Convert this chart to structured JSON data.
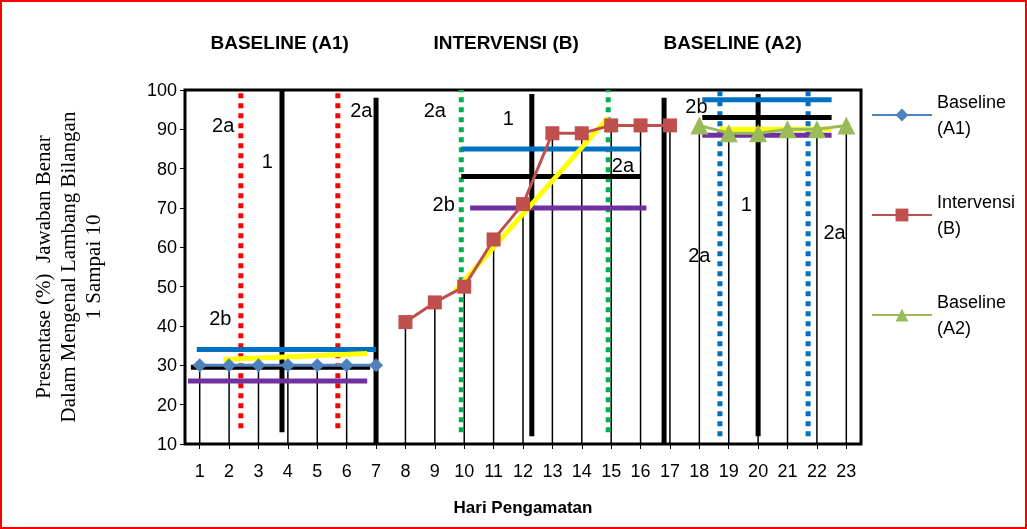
{
  "chart_data": {
    "type": "line",
    "ylabel": "Presentase (%)  Jawaban Benar\nDalam Mengenal Lambang Bilangan\n1 Sampai 10",
    "xlabel": "Hari Pengamatan",
    "xlim": [
      0.5,
      23.5
    ],
    "xticks": [
      1,
      2,
      3,
      4,
      5,
      6,
      7,
      8,
      9,
      10,
      11,
      12,
      13,
      14,
      15,
      16,
      17,
      18,
      19,
      20,
      21,
      22,
      23
    ],
    "ylim": [
      10,
      100
    ],
    "yticks": [
      10,
      20,
      30,
      40,
      50,
      60,
      70,
      80,
      90,
      100
    ],
    "grid": false,
    "legend": "right",
    "series": [
      {
        "name": "Baseline\n(A1)",
        "color": "#4f81bd",
        "marker": "diamond",
        "x": [
          1,
          2,
          3,
          4,
          5,
          6,
          7
        ],
        "values": [
          30,
          30,
          30,
          30,
          30,
          30,
          30
        ],
        "errors": [
          [
            10,
            30
          ],
          [
            10,
            30
          ],
          [
            10,
            30
          ],
          [
            10,
            30
          ],
          [
            10,
            30
          ],
          [
            10,
            30
          ],
          [
            10,
            30
          ]
        ]
      },
      {
        "name": "Intervensi\n(B)",
        "color": "#c0504d",
        "marker": "square",
        "x": [
          8,
          9,
          10,
          11,
          12,
          13,
          14,
          15,
          16,
          17
        ],
        "values": [
          41,
          46,
          50,
          62,
          71,
          89,
          89,
          91,
          91,
          91
        ],
        "errors": [
          [
            10,
            41
          ],
          [
            10,
            46
          ],
          [
            10,
            50
          ],
          [
            10,
            62
          ],
          [
            10,
            71
          ],
          [
            10,
            89
          ],
          [
            10,
            89
          ],
          [
            10,
            91
          ],
          [
            10,
            91
          ],
          [
            10,
            91
          ]
        ]
      },
      {
        "name": "Baseline\n(A2)",
        "color": "#9bbb59",
        "marker": "triangle",
        "x": [
          18,
          19,
          20,
          21,
          22,
          23
        ],
        "values": [
          91,
          89,
          89,
          90,
          90,
          91
        ],
        "errors": [
          [
            10,
            91
          ],
          [
            10,
            89
          ],
          [
            10,
            89
          ],
          [
            10,
            90
          ],
          [
            10,
            90
          ],
          [
            10,
            91
          ]
        ]
      },
      {
        "color": "#ff0000",
        "line_style": "dotted",
        "x": [
          2.4,
          2.4
        ],
        "values": [
          14,
          100
        ]
      },
      {
        "color": "#ff0000",
        "line_style": "dotted",
        "x": [
          5.7,
          5.7
        ],
        "values": [
          14,
          100
        ]
      },
      {
        "color": "#000000",
        "line_style": "solid",
        "x": [
          3.8,
          3.8
        ],
        "values": [
          13,
          100
        ]
      },
      {
        "color": "#000000",
        "line_style": "solid",
        "x": [
          7,
          7
        ],
        "values": [
          10,
          98
        ]
      },
      {
        "color": "#0070c0",
        "line_style": "solid",
        "x": [
          0.9,
          7
        ],
        "values": [
          34,
          34
        ]
      },
      {
        "color": "#ffff00",
        "line_style": "solid",
        "x": [
          1.8,
          6.7
        ],
        "values": [
          31.5,
          33
        ]
      },
      {
        "color": "#000000",
        "line_style": "solid",
        "x": [
          0.7,
          6.8
        ],
        "values": [
          29.5,
          29.5
        ]
      },
      {
        "color": "#7030a0",
        "line_style": "solid",
        "x": [
          0.6,
          6.7
        ],
        "values": [
          26,
          26
        ]
      },
      {
        "color": "#00b050",
        "line_style": "dotted",
        "x": [
          9.9,
          9.9
        ],
        "values": [
          13,
          100
        ]
      },
      {
        "color": "#00b050",
        "line_style": "dotted",
        "x": [
          14.9,
          14.9
        ],
        "values": [
          13,
          100
        ]
      },
      {
        "color": "#000000",
        "line_style": "solid",
        "x": [
          12.3,
          12.3
        ],
        "values": [
          12,
          99
        ]
      },
      {
        "color": "#000000",
        "line_style": "solid",
        "x": [
          16.8,
          16.8
        ],
        "values": [
          10,
          98
        ]
      },
      {
        "color": "#0070c0",
        "line_style": "solid",
        "x": [
          9.9,
          16
        ],
        "values": [
          85,
          85
        ]
      },
      {
        "color": "#000000",
        "line_style": "solid",
        "x": [
          9.9,
          16
        ],
        "values": [
          78,
          78
        ]
      },
      {
        "color": "#7030a0",
        "line_style": "solid",
        "x": [
          10.2,
          16.2
        ],
        "values": [
          70,
          70
        ]
      },
      {
        "color": "#ffff00",
        "line_style": "solid",
        "x": [
          9.7,
          14.9
        ],
        "values": [
          49,
          93
        ]
      },
      {
        "color": "#0070c0",
        "line_style": "dotted",
        "x": [
          18.7,
          18.7
        ],
        "values": [
          12,
          100
        ]
      },
      {
        "color": "#0070c0",
        "line_style": "dotted",
        "x": [
          21.7,
          21.7
        ],
        "values": [
          12,
          100
        ]
      },
      {
        "color": "#000000",
        "line_style": "solid",
        "x": [
          20,
          20
        ],
        "values": [
          12,
          99
        ]
      },
      {
        "color": "#0070c0",
        "line_style": "solid",
        "x": [
          18.1,
          22.5
        ],
        "values": [
          97.5,
          97.5
        ]
      },
      {
        "color": "#000000",
        "line_style": "solid",
        "x": [
          18.1,
          22.5
        ],
        "values": [
          93,
          93
        ]
      },
      {
        "color": "#ffff00",
        "line_style": "solid",
        "x": [
          18.7,
          22.5
        ],
        "values": [
          90,
          90
        ]
      },
      {
        "color": "#7030a0",
        "line_style": "solid",
        "x": [
          18.1,
          22.5
        ],
        "values": [
          88.5,
          88.5
        ]
      }
    ],
    "annotations": [
      "BASELINE (A1)",
      "INTERVENSI (B)",
      "BASELINE (A2)",
      "2a",
      "1",
      "2a",
      "2b",
      "2a",
      "1",
      "2b",
      "2a",
      "2b",
      "1",
      "2a",
      "2a"
    ]
  }
}
